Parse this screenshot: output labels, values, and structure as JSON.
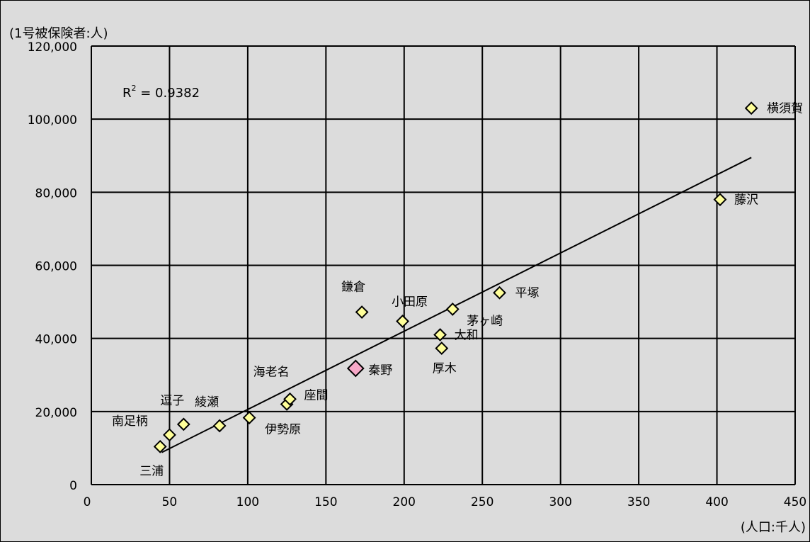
{
  "chart_data": {
    "type": "scatter",
    "y_axis_title": "(1号被保険者:人)",
    "x_axis_title": "(人口:千人)",
    "xlim": [
      0,
      450
    ],
    "ylim": [
      0,
      120000
    ],
    "x_ticks": [
      0,
      50,
      100,
      150,
      200,
      250,
      300,
      350,
      400,
      450
    ],
    "y_ticks": [
      0,
      20000,
      40000,
      60000,
      80000,
      100000,
      120000
    ],
    "x_tick_labels": [
      "0",
      "50",
      "100",
      "150",
      "200",
      "250",
      "300",
      "350",
      "400",
      "450"
    ],
    "y_tick_labels": [
      "0",
      "20,000",
      "40,000",
      "60,000",
      "80,000",
      "100,000",
      "120,000"
    ],
    "grid": true,
    "r_squared": {
      "prefix": "R",
      "sup": "2",
      "value": " = 0.9382"
    },
    "trendline": {
      "x": [
        45,
        422
      ],
      "y": [
        8800,
        89500
      ]
    },
    "highlight_color": "#f7a8c8",
    "marker_color": "#ffff99",
    "points": [
      {
        "name": "横須賀",
        "x": 422,
        "y": 103000,
        "highlight": false
      },
      {
        "name": "藤沢",
        "x": 402,
        "y": 78000,
        "highlight": false
      },
      {
        "name": "平塚",
        "x": 261,
        "y": 52500,
        "highlight": false
      },
      {
        "name": "茅ヶ崎",
        "x": 231,
        "y": 48000,
        "highlight": false
      },
      {
        "name": "小田原",
        "x": 199,
        "y": 44700,
        "highlight": false
      },
      {
        "name": "鎌倉",
        "x": 173,
        "y": 47200,
        "highlight": false
      },
      {
        "name": "大和",
        "x": 223,
        "y": 41000,
        "highlight": false
      },
      {
        "name": "厚木",
        "x": 224,
        "y": 37300,
        "highlight": false
      },
      {
        "name": "秦野",
        "x": 169,
        "y": 31800,
        "highlight": true
      },
      {
        "name": "海老名",
        "x": 125,
        "y": 22000,
        "highlight": false
      },
      {
        "name": "座間",
        "x": 127,
        "y": 23400,
        "highlight": false
      },
      {
        "name": "伊勢原",
        "x": 101,
        "y": 18300,
        "highlight": false
      },
      {
        "name": "綾瀬",
        "x": 82,
        "y": 16100,
        "highlight": false
      },
      {
        "name": "逗子",
        "x": 59,
        "y": 16500,
        "highlight": false
      },
      {
        "name": "南足柄",
        "x": 50,
        "y": 13600,
        "highlight": false
      },
      {
        "name": "三浦",
        "x": 44,
        "y": 10400,
        "highlight": false
      }
    ]
  }
}
